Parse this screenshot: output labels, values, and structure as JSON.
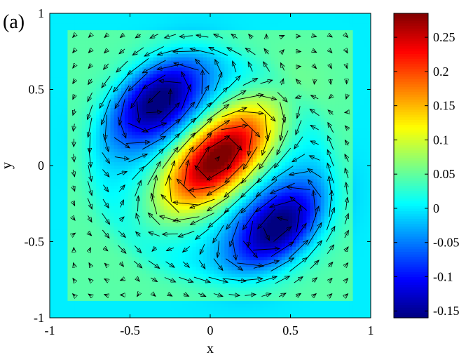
{
  "chart_data": {
    "type": "heatmap",
    "panel_label": "(a)",
    "xlabel": "x",
    "ylabel": "y",
    "xlim": [
      -1,
      1
    ],
    "ylim": [
      -1,
      1
    ],
    "x_ticks": [
      "-1",
      "-0.5",
      "0",
      "0.5",
      "1"
    ],
    "y_ticks": [
      "-1",
      "-0.5",
      "0",
      "0.5",
      "1"
    ],
    "x_tick_values": [
      -1,
      -0.5,
      0,
      0.5,
      1
    ],
    "y_tick_values": [
      -1,
      -0.5,
      0,
      0.5,
      1
    ],
    "colorbar": {
      "range": [
        -0.16,
        0.285
      ],
      "tick_values": [
        -0.15,
        -0.1,
        -0.05,
        0,
        0.05,
        0.1,
        0.15,
        0.2,
        0.25
      ],
      "tick_labels": [
        "-0.15",
        "-0.1",
        "-0.05",
        "0",
        "0.05",
        "0.1",
        "0.15",
        "0.2",
        "0.25"
      ],
      "colormap": "jet"
    },
    "grid": false,
    "overlay": "vector arrows (quiver)",
    "field_features": [
      {
        "kind": "positive peak",
        "x": 0.05,
        "y": 0.05,
        "value": 0.285
      },
      {
        "kind": "negative trough",
        "x": -0.32,
        "y": 0.42,
        "value": -0.16
      },
      {
        "kind": "negative trough",
        "x": 0.42,
        "y": -0.4,
        "value": -0.16
      }
    ]
  }
}
